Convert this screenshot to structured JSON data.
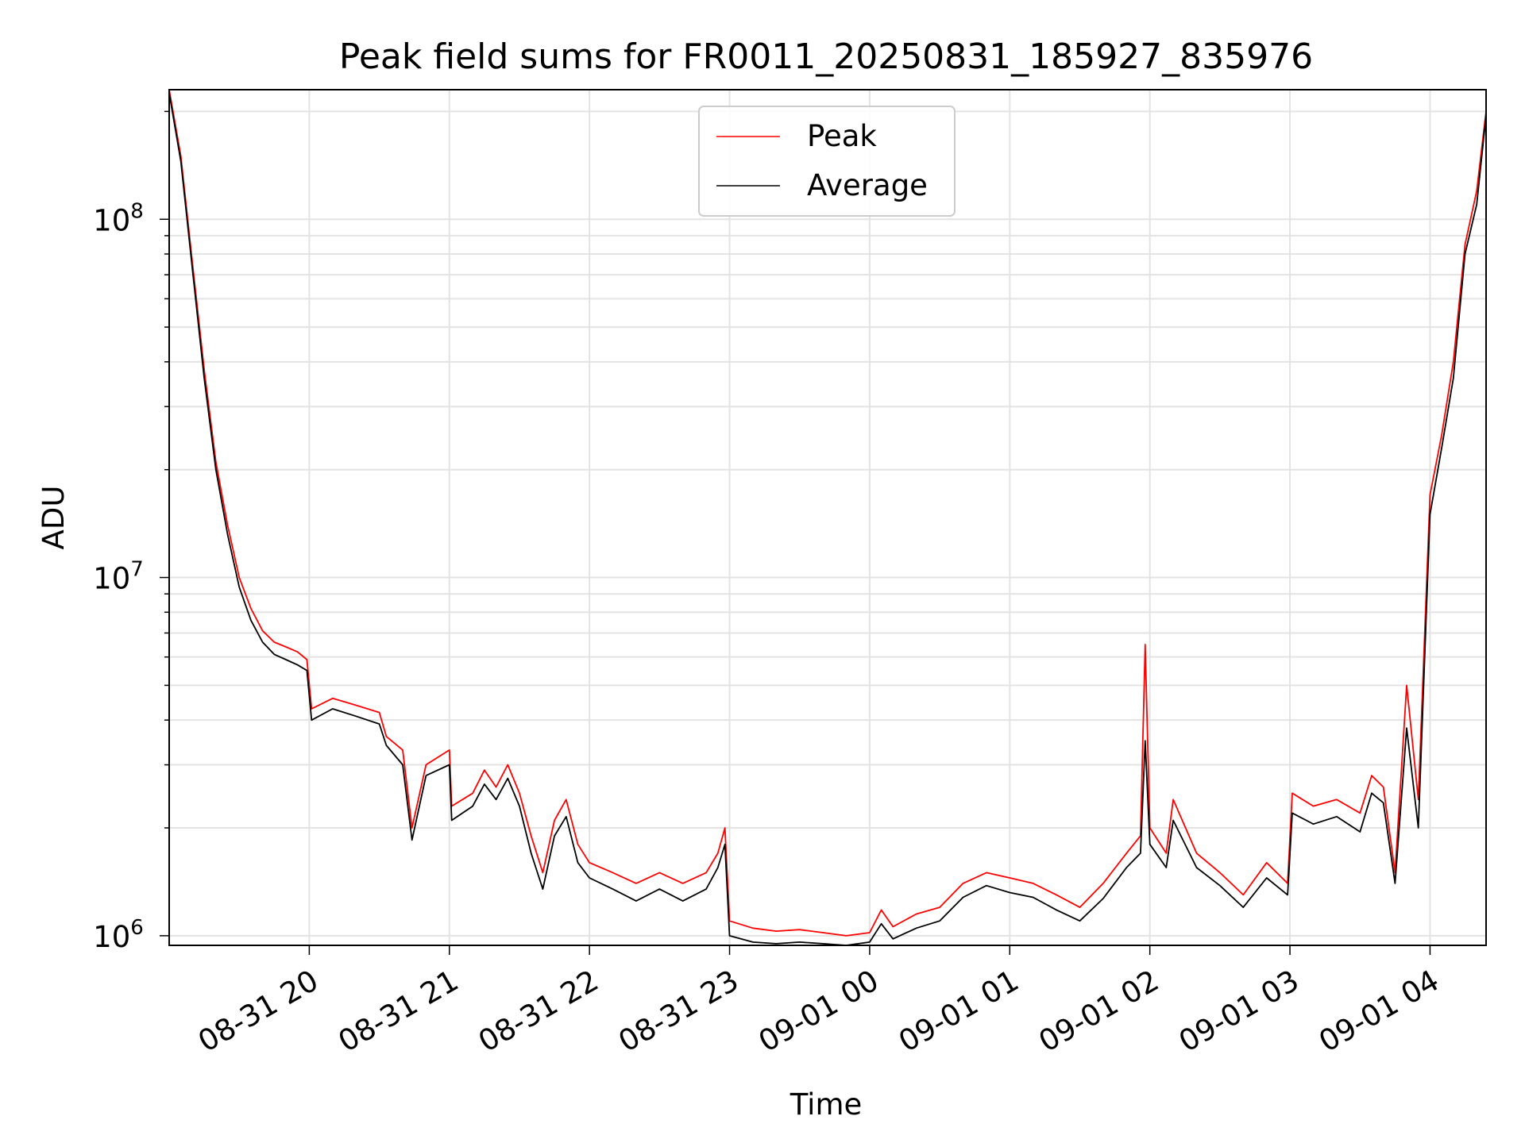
{
  "chart_data": {
    "type": "line",
    "title": "Peak field sums for FR0011_20250831_185927_835976",
    "xlabel": "Time",
    "ylabel": "ADU",
    "yscale": "log",
    "grid": true,
    "legend_position": "top-center",
    "xlim": [
      "2025-08-31 19:00",
      "2025-09-01 04:24"
    ],
    "ylim": [
      940000,
      230000000
    ],
    "x_tick_labels": [
      "08-31 20",
      "08-31 21",
      "08-31 22",
      "08-31 23",
      "09-01 00",
      "09-01 01",
      "09-01 02",
      "09-01 03",
      "09-01 04"
    ],
    "x_tick_times": [
      "2025-08-31 20:00",
      "2025-08-31 21:00",
      "2025-08-31 22:00",
      "2025-08-31 23:00",
      "2025-09-01 00:00",
      "2025-09-01 01:00",
      "2025-09-01 02:00",
      "2025-09-01 03:00",
      "2025-09-01 04:00"
    ],
    "y_ticks": [
      {
        "value": 1000000,
        "base": "10",
        "exp": "6"
      },
      {
        "value": 10000000,
        "base": "10",
        "exp": "7"
      },
      {
        "value": 100000000,
        "base": "10",
        "exp": "8"
      }
    ],
    "series": [
      {
        "name": "Peak",
        "color": "#ff0000",
        "x": [
          "2025-08-31 19:00",
          "2025-08-31 19:05",
          "2025-08-31 19:10",
          "2025-08-31 19:15",
          "2025-08-31 19:20",
          "2025-08-31 19:25",
          "2025-08-31 19:30",
          "2025-08-31 19:35",
          "2025-08-31 19:40",
          "2025-08-31 19:45",
          "2025-08-31 19:50",
          "2025-08-31 19:55",
          "2025-08-31 19:59",
          "2025-08-31 20:01",
          "2025-08-31 20:10",
          "2025-08-31 20:20",
          "2025-08-31 20:30",
          "2025-08-31 20:33",
          "2025-08-31 20:40",
          "2025-08-31 20:44",
          "2025-08-31 20:50",
          "2025-08-31 21:00",
          "2025-08-31 21:01",
          "2025-08-31 21:10",
          "2025-08-31 21:15",
          "2025-08-31 21:20",
          "2025-08-31 21:25",
          "2025-08-31 21:30",
          "2025-08-31 21:35",
          "2025-08-31 21:40",
          "2025-08-31 21:45",
          "2025-08-31 21:50",
          "2025-08-31 21:55",
          "2025-08-31 22:00",
          "2025-08-31 22:10",
          "2025-08-31 22:20",
          "2025-08-31 22:30",
          "2025-08-31 22:40",
          "2025-08-31 22:50",
          "2025-08-31 22:55",
          "2025-08-31 22:58",
          "2025-08-31 23:00",
          "2025-08-31 23:10",
          "2025-08-31 23:20",
          "2025-08-31 23:30",
          "2025-08-31 23:40",
          "2025-08-31 23:50",
          "2025-09-01 00:00",
          "2025-09-01 00:05",
          "2025-09-01 00:10",
          "2025-09-01 00:20",
          "2025-09-01 00:30",
          "2025-09-01 00:40",
          "2025-09-01 00:50",
          "2025-09-01 01:00",
          "2025-09-01 01:10",
          "2025-09-01 01:20",
          "2025-09-01 01:30",
          "2025-09-01 01:40",
          "2025-09-01 01:50",
          "2025-09-01 01:56",
          "2025-09-01 01:58",
          "2025-09-01 02:00",
          "2025-09-01 02:07",
          "2025-09-01 02:10",
          "2025-09-01 02:20",
          "2025-09-01 02:30",
          "2025-09-01 02:40",
          "2025-09-01 02:50",
          "2025-09-01 02:59",
          "2025-09-01 03:01",
          "2025-09-01 03:10",
          "2025-09-01 03:20",
          "2025-09-01 03:30",
          "2025-09-01 03:35",
          "2025-09-01 03:40",
          "2025-09-01 03:45",
          "2025-09-01 03:50",
          "2025-09-01 03:55",
          "2025-09-01 04:00",
          "2025-09-01 04:05",
          "2025-09-01 04:10",
          "2025-09-01 04:15",
          "2025-09-01 04:20",
          "2025-09-01 04:24"
        ],
        "y": [
          230000000,
          150000000,
          75000000,
          38000000,
          21000000,
          14000000,
          10000000,
          8200000,
          7100000,
          6600000,
          6400000,
          6200000,
          5900000,
          4300000,
          4600000,
          4400000,
          4200000,
          3600000,
          3300000,
          2000000,
          3000000,
          3300000,
          2300000,
          2500000,
          2900000,
          2600000,
          3000000,
          2500000,
          1900000,
          1500000,
          2100000,
          2400000,
          1800000,
          1600000,
          1500000,
          1400000,
          1500000,
          1400000,
          1500000,
          1700000,
          2000000,
          1100000,
          1050000,
          1030000,
          1040000,
          1020000,
          1000000,
          1020000,
          1180000,
          1060000,
          1150000,
          1200000,
          1400000,
          1500000,
          1450000,
          1400000,
          1300000,
          1200000,
          1400000,
          1700000,
          1900000,
          6500000,
          2000000,
          1700000,
          2400000,
          1700000,
          1500000,
          1300000,
          1600000,
          1400000,
          2500000,
          2300000,
          2400000,
          2200000,
          2800000,
          2600000,
          1500000,
          5000000,
          2400000,
          17000000,
          25000000,
          40000000,
          85000000,
          120000000,
          200000000
        ]
      },
      {
        "name": "Average",
        "color": "#000000",
        "x": [
          "2025-08-31 19:00",
          "2025-08-31 19:05",
          "2025-08-31 19:10",
          "2025-08-31 19:15",
          "2025-08-31 19:20",
          "2025-08-31 19:25",
          "2025-08-31 19:30",
          "2025-08-31 19:35",
          "2025-08-31 19:40",
          "2025-08-31 19:45",
          "2025-08-31 19:50",
          "2025-08-31 19:55",
          "2025-08-31 19:59",
          "2025-08-31 20:01",
          "2025-08-31 20:10",
          "2025-08-31 20:20",
          "2025-08-31 20:30",
          "2025-08-31 20:33",
          "2025-08-31 20:40",
          "2025-08-31 20:44",
          "2025-08-31 20:50",
          "2025-08-31 21:00",
          "2025-08-31 21:01",
          "2025-08-31 21:10",
          "2025-08-31 21:15",
          "2025-08-31 21:20",
          "2025-08-31 21:25",
          "2025-08-31 21:30",
          "2025-08-31 21:35",
          "2025-08-31 21:40",
          "2025-08-31 21:45",
          "2025-08-31 21:50",
          "2025-08-31 21:55",
          "2025-08-31 22:00",
          "2025-08-31 22:10",
          "2025-08-31 22:20",
          "2025-08-31 22:30",
          "2025-08-31 22:40",
          "2025-08-31 22:50",
          "2025-08-31 22:55",
          "2025-08-31 22:58",
          "2025-08-31 23:00",
          "2025-08-31 23:10",
          "2025-08-31 23:20",
          "2025-08-31 23:30",
          "2025-08-31 23:40",
          "2025-08-31 23:50",
          "2025-09-01 00:00",
          "2025-09-01 00:05",
          "2025-09-01 00:10",
          "2025-09-01 00:20",
          "2025-09-01 00:30",
          "2025-09-01 00:40",
          "2025-09-01 00:50",
          "2025-09-01 01:00",
          "2025-09-01 01:10",
          "2025-09-01 01:20",
          "2025-09-01 01:30",
          "2025-09-01 01:40",
          "2025-09-01 01:50",
          "2025-09-01 01:56",
          "2025-09-01 01:58",
          "2025-09-01 02:00",
          "2025-09-01 02:07",
          "2025-09-01 02:10",
          "2025-09-01 02:20",
          "2025-09-01 02:30",
          "2025-09-01 02:40",
          "2025-09-01 02:50",
          "2025-09-01 02:59",
          "2025-09-01 03:01",
          "2025-09-01 03:10",
          "2025-09-01 03:20",
          "2025-09-01 03:30",
          "2025-09-01 03:35",
          "2025-09-01 03:40",
          "2025-09-01 03:45",
          "2025-09-01 03:50",
          "2025-09-01 03:55",
          "2025-09-01 04:00",
          "2025-09-01 04:05",
          "2025-09-01 04:10",
          "2025-09-01 04:15",
          "2025-09-01 04:20",
          "2025-09-01 04:24"
        ],
        "y": [
          225000000,
          145000000,
          72000000,
          36000000,
          20000000,
          13200000,
          9400000,
          7600000,
          6600000,
          6100000,
          5900000,
          5700000,
          5500000,
          4000000,
          4300000,
          4100000,
          3900000,
          3400000,
          3000000,
          1850000,
          2800000,
          3000000,
          2100000,
          2300000,
          2650000,
          2400000,
          2750000,
          2300000,
          1700000,
          1350000,
          1900000,
          2150000,
          1600000,
          1450000,
          1350000,
          1250000,
          1350000,
          1250000,
          1350000,
          1550000,
          1800000,
          1000000,
          960000,
          950000,
          960000,
          950000,
          940000,
          960000,
          1080000,
          980000,
          1050000,
          1100000,
          1280000,
          1380000,
          1320000,
          1280000,
          1180000,
          1100000,
          1270000,
          1550000,
          1700000,
          3500000,
          1800000,
          1550000,
          2100000,
          1550000,
          1380000,
          1200000,
          1450000,
          1300000,
          2200000,
          2050000,
          2150000,
          1950000,
          2500000,
          2350000,
          1400000,
          3800000,
          2000000,
          15000000,
          23000000,
          36000000,
          80000000,
          110000000,
          195000000
        ]
      }
    ]
  }
}
